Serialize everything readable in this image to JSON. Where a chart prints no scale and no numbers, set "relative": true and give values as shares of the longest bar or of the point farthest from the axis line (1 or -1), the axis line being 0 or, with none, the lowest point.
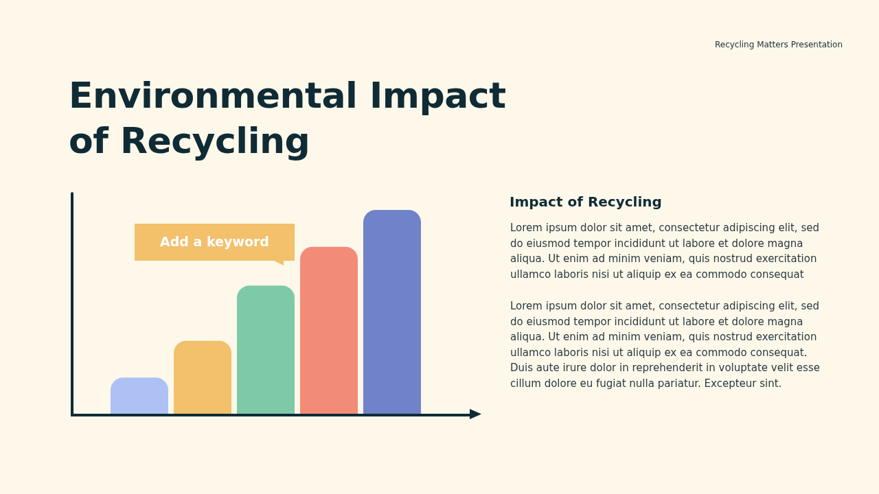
{
  "chart_data": {
    "type": "bar",
    "title": "Environmental Impact of Recycling",
    "categories": [
      null,
      null,
      null,
      null,
      null
    ],
    "values": [
      0.18,
      0.36,
      0.63,
      0.82,
      1.0
    ],
    "colors": [
      "#adc1f5",
      "#f3c06b",
      "#7ecaa8",
      "#f28c78",
      "#7082c9"
    ],
    "relative": true,
    "annotations": [
      "Recycling Matters Presentation",
      "Add a keyword",
      "Impact of Recycling",
      "Lorem ipsum dolor sit amet, consectetur adipiscing elit, sed do eiusmod tempor incididunt ut labore et dolore magna aliqua. Ut enim ad minim veniam, quis nostrud exercitation ullamco laboris nisi ut aliquip ex ea commodo consequat",
      "Lorem ipsum dolor sit amet, consectetur adipiscing elit, sed do eiusmod tempor incididunt ut labore et dolore magna aliqua. Ut enim ad minim veniam, quis nostrud exercitation ullamco laboris nisi ut aliquip ex ea commodo consequat. Duis aute irure dolor in reprehenderit in voluptate velit esse cillum dolore eu fugiat nulla pariatur. Excepteur sint."
    ]
  }
}
